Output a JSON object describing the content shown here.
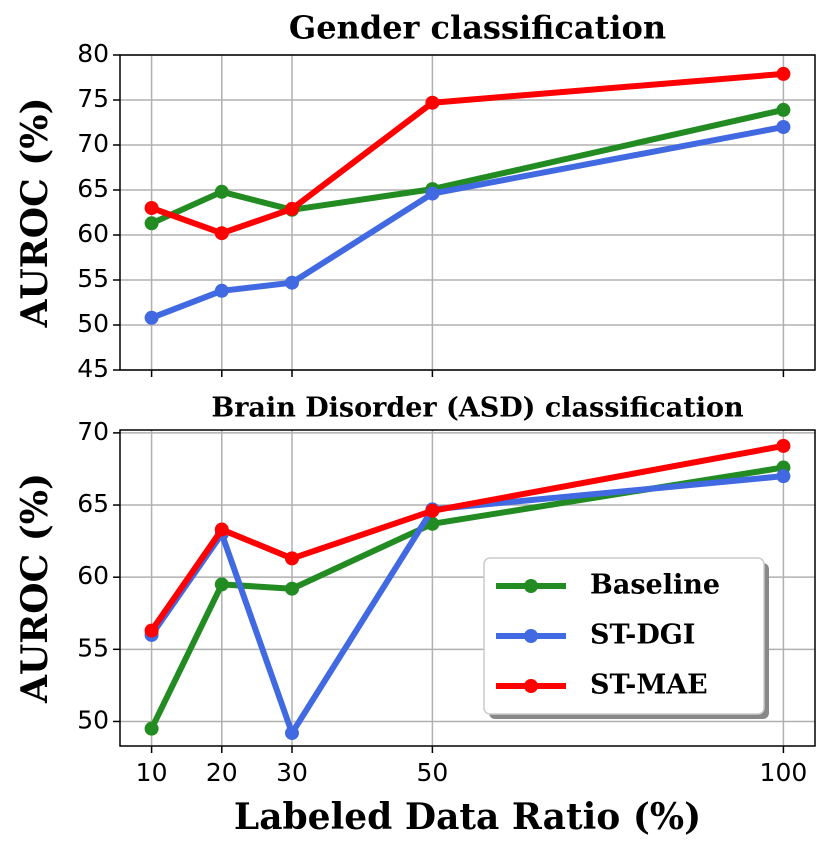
{
  "chart_data": [
    {
      "type": "line",
      "title": "Gender classification",
      "ylabel": "AUROC (%)",
      "x": [
        10,
        20,
        30,
        50,
        100
      ],
      "xlim": [
        5.5,
        104.5
      ],
      "xticks": [
        10,
        20,
        30,
        50,
        100
      ],
      "show_xtick_labels": false,
      "ylim": [
        45,
        80
      ],
      "yticks": [
        45,
        50,
        55,
        60,
        65,
        70,
        75,
        80
      ],
      "grid": true,
      "series": [
        {
          "name": "Baseline",
          "color": "#228b22",
          "values": [
            61.3,
            64.8,
            62.8,
            65.1,
            73.9
          ]
        },
        {
          "name": "ST-DGI",
          "color": "#4169e1",
          "values": [
            50.8,
            53.8,
            54.7,
            64.6,
            72.0
          ]
        },
        {
          "name": "ST-MAE",
          "color": "#ff0000",
          "values": [
            63.0,
            60.2,
            62.9,
            74.7,
            77.9
          ]
        }
      ]
    },
    {
      "type": "line",
      "title": "Brain Disorder (ASD) classification",
      "ylabel": "AUROC (%)",
      "xlabel": "Labeled Data Ratio (%)",
      "x": [
        10,
        20,
        30,
        50,
        100
      ],
      "xlim": [
        5.5,
        104.5
      ],
      "xticks": [
        10,
        20,
        30,
        50,
        100
      ],
      "show_xtick_labels": true,
      "ylim": [
        48.3,
        70.2
      ],
      "yticks": [
        50,
        55,
        60,
        65,
        70
      ],
      "grid": true,
      "legend": "lower right",
      "series": [
        {
          "name": "Baseline",
          "color": "#228b22",
          "values": [
            49.5,
            59.5,
            59.2,
            63.7,
            67.6
          ]
        },
        {
          "name": "ST-DGI",
          "color": "#4169e1",
          "values": [
            56.0,
            63.0,
            49.2,
            64.7,
            67.0
          ]
        },
        {
          "name": "ST-MAE",
          "color": "#ff0000",
          "values": [
            56.3,
            63.3,
            61.3,
            64.6,
            69.1
          ]
        }
      ]
    }
  ]
}
